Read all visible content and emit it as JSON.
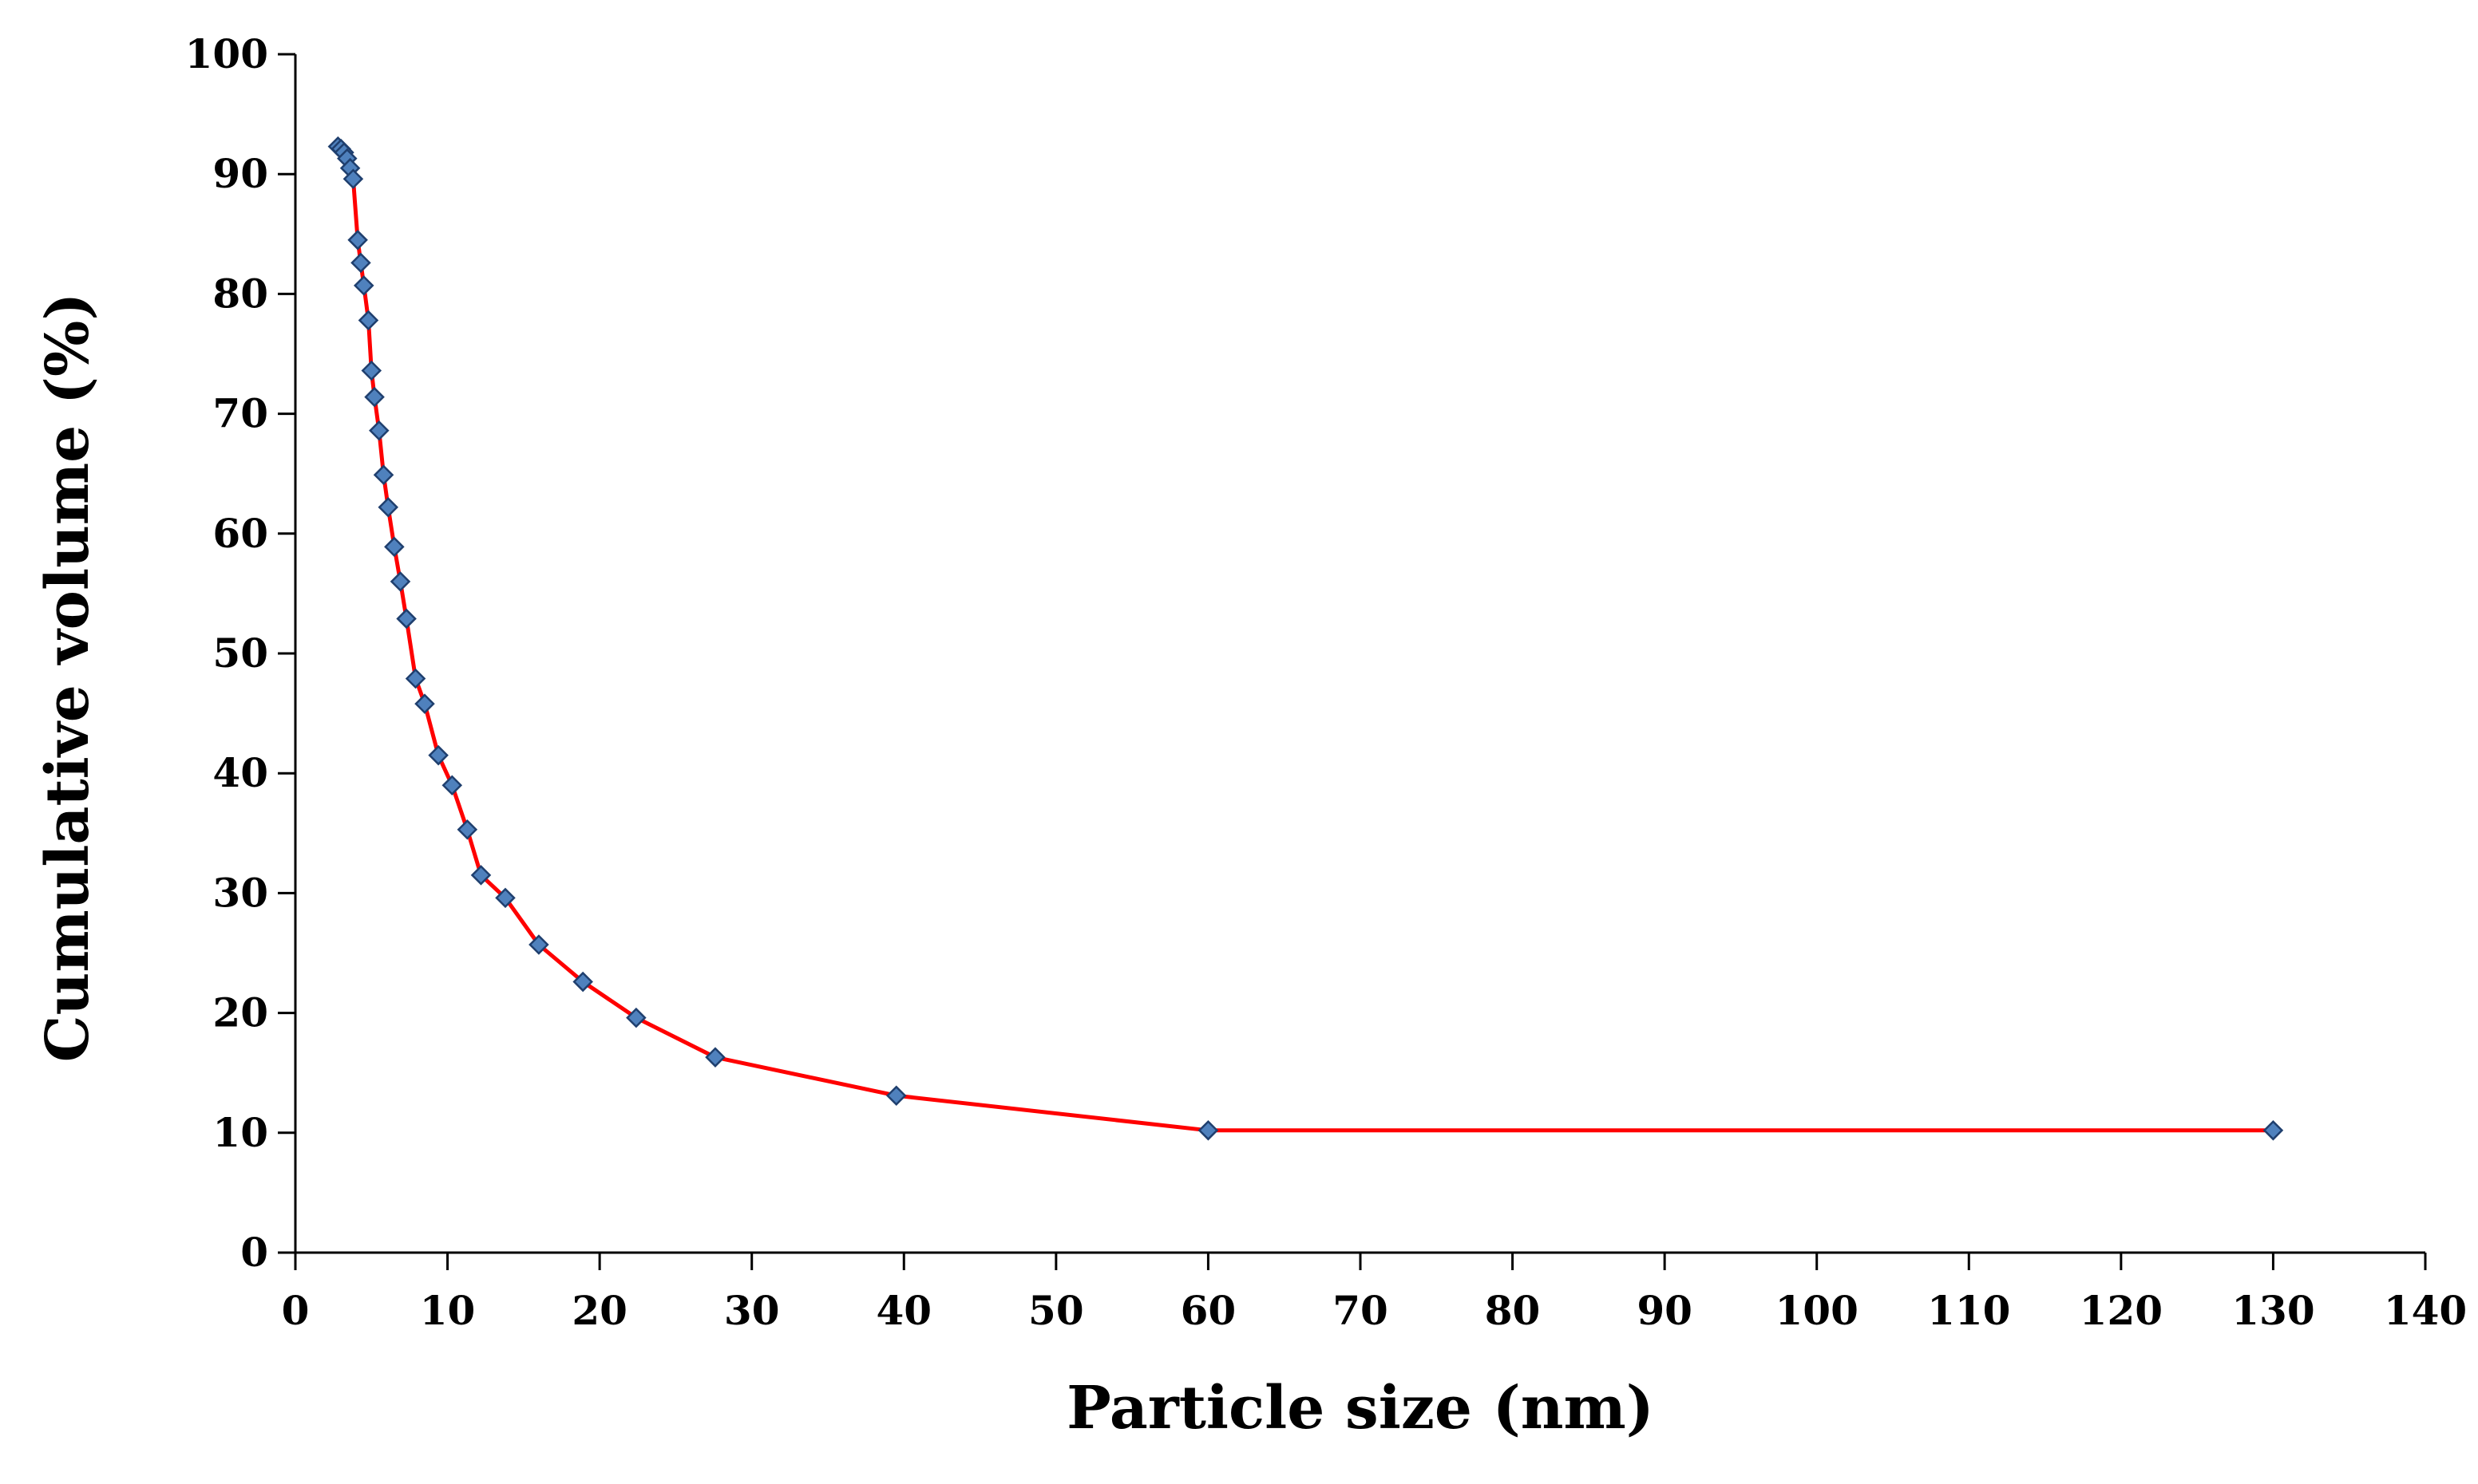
{
  "chart_data": {
    "type": "line",
    "title": "",
    "xlabel": "Particle size (nm)",
    "ylabel": "Cumulative volume (%)",
    "xlim": [
      0,
      140
    ],
    "ylim": [
      0,
      100
    ],
    "xticks": [
      0,
      10,
      20,
      30,
      40,
      50,
      60,
      70,
      80,
      90,
      100,
      110,
      120,
      130,
      140
    ],
    "yticks": [
      0,
      10,
      20,
      30,
      40,
      50,
      60,
      70,
      80,
      90,
      100
    ],
    "grid": false,
    "legend": "none",
    "line_color": "#ff0000",
    "marker_color": "#4f81bd",
    "marker_edge_color": "#1f3f6e",
    "marker": "diamond",
    "series": [
      {
        "x": [
          2.8,
          3.0,
          3.2,
          3.4,
          3.6,
          3.8,
          4.1,
          4.3,
          4.5,
          4.8,
          5.0,
          5.2,
          5.5,
          5.8,
          6.1,
          6.5,
          6.9,
          7.3,
          7.9,
          8.5,
          9.4,
          10.3,
          11.3,
          12.2,
          13.8,
          16.0,
          18.9,
          22.4,
          27.6,
          39.5,
          60.0,
          130.0
        ],
        "y": [
          92.3,
          92.1,
          91.8,
          91.3,
          90.5,
          89.6,
          84.5,
          82.6,
          80.7,
          77.8,
          73.6,
          71.4,
          68.6,
          64.9,
          62.2,
          58.9,
          56.0,
          52.9,
          47.9,
          45.8,
          41.5,
          39.0,
          35.3,
          31.5,
          29.6,
          25.7,
          22.6,
          19.6,
          16.3,
          13.1,
          10.2,
          10.2
        ]
      }
    ]
  }
}
